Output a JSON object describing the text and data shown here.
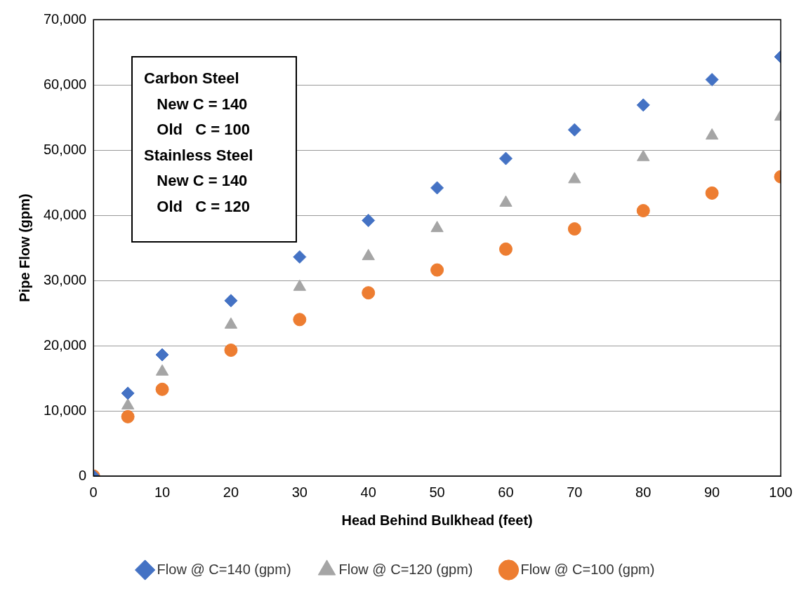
{
  "chart_data": {
    "type": "scatter",
    "xlabel": "Head Behind Bulkhead (feet)",
    "ylabel": "Pipe Flow (gpm)",
    "x": [
      0,
      5,
      10,
      20,
      30,
      40,
      50,
      60,
      70,
      80,
      90,
      100
    ],
    "series": [
      {
        "name": "Flow @ C=140 (gpm)",
        "color": "#4472c4",
        "marker": "diamond",
        "values": [
          0,
          12700,
          18600,
          26900,
          33600,
          39200,
          44200,
          48700,
          53100,
          56900,
          60800,
          64300
        ]
      },
      {
        "name": "Flow @ C=120 (gpm)",
        "color": "#a5a5a5",
        "marker": "triangle",
        "values": [
          null,
          10800,
          16000,
          23200,
          29000,
          33700,
          38000,
          41900,
          45500,
          48900,
          52200,
          55100
        ]
      },
      {
        "name": "Flow @ C=100 (gpm)",
        "color": "#ed7d31",
        "marker": "circle",
        "values": [
          0,
          9100,
          13300,
          19300,
          24000,
          28100,
          31600,
          34800,
          37900,
          40700,
          43400,
          45900
        ]
      }
    ],
    "xlim": [
      0,
      100
    ],
    "xticks": [
      0,
      10,
      20,
      30,
      40,
      50,
      60,
      70,
      80,
      90,
      100
    ],
    "ylim": [
      0,
      70000
    ],
    "yticks": [
      {
        "value": 0,
        "label": "0"
      },
      {
        "value": 10000,
        "label": "10,000"
      },
      {
        "value": 20000,
        "label": "20,000"
      },
      {
        "value": 30000,
        "label": "30,000"
      },
      {
        "value": 40000,
        "label": "40,000"
      },
      {
        "value": 50000,
        "label": "50,000"
      },
      {
        "value": 60000,
        "label": "60,000"
      },
      {
        "value": 70000,
        "label": "70,000"
      }
    ],
    "grid": "y",
    "legend": "bottom",
    "annotations": [
      "Carbon Steel",
      "   New C = 140",
      "   Old   C = 100",
      "Stainless Steel",
      "   New C = 140",
      "   Old   C = 120"
    ]
  }
}
